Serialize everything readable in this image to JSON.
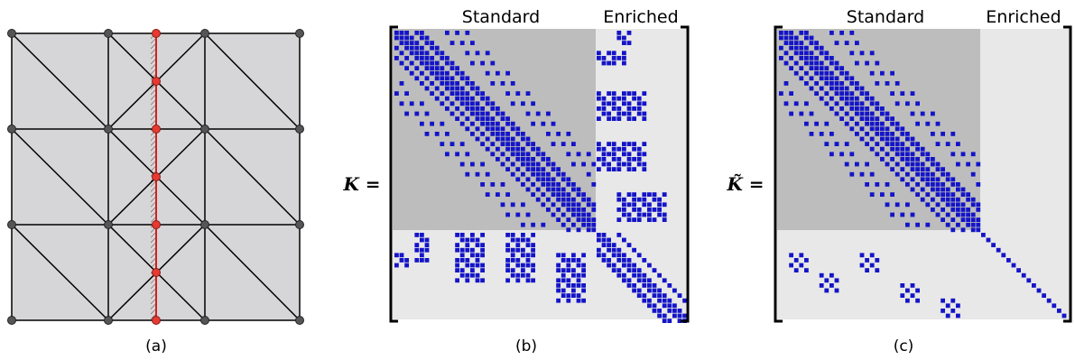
{
  "panel_a": {
    "caption": "(a)"
  },
  "panel_b": {
    "caption": "(b)",
    "lhs": "K =",
    "block_labels": [
      "Standard",
      "Enriched"
    ]
  },
  "panel_c": {
    "caption": "(c)",
    "lhs": "K̃ =",
    "block_labels": [
      "Standard",
      "Enriched"
    ]
  },
  "colors": {
    "element_fill": "#d6d6d8",
    "mesh_line": "#000000",
    "node": "#555555",
    "enriched_node": "#e53a32",
    "crack_line": "#d81e1e",
    "std_block": "#bdbdbd",
    "enr_block": "#e8e8e8",
    "nonzero": "#1414c8"
  }
}
